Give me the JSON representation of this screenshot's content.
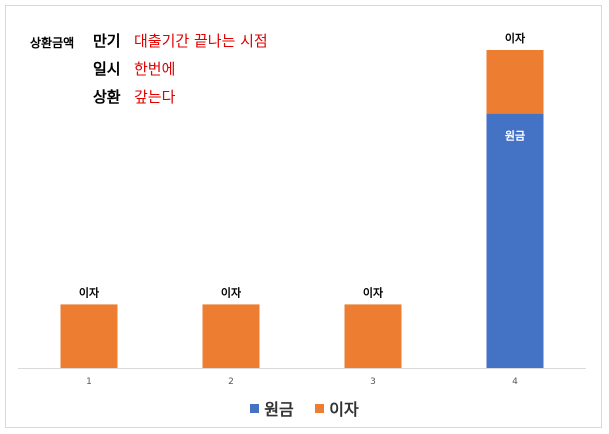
{
  "annotations": {
    "label": "상환금액",
    "rows": [
      {
        "term": "만기",
        "desc": "대출기간 끝나는 시점"
      },
      {
        "term": "일시",
        "desc": "한번에"
      },
      {
        "term": "상환",
        "desc": "갚는다"
      }
    ]
  },
  "chart_data": {
    "type": "bar",
    "stacked": true,
    "categories": [
      "1",
      "2",
      "3",
      "4"
    ],
    "series": [
      {
        "name": "원금",
        "color": "#4472c4",
        "values": [
          0,
          0,
          0,
          100
        ],
        "labels": [
          "",
          "",
          "",
          "원금"
        ]
      },
      {
        "name": "이자",
        "color": "#ed7d31",
        "values": [
          25,
          25,
          25,
          25
        ],
        "labels": [
          "이자",
          "이자",
          "이자",
          "이자"
        ]
      }
    ],
    "ylim": [
      0,
      125
    ],
    "grid": false,
    "legend": "bottom"
  }
}
